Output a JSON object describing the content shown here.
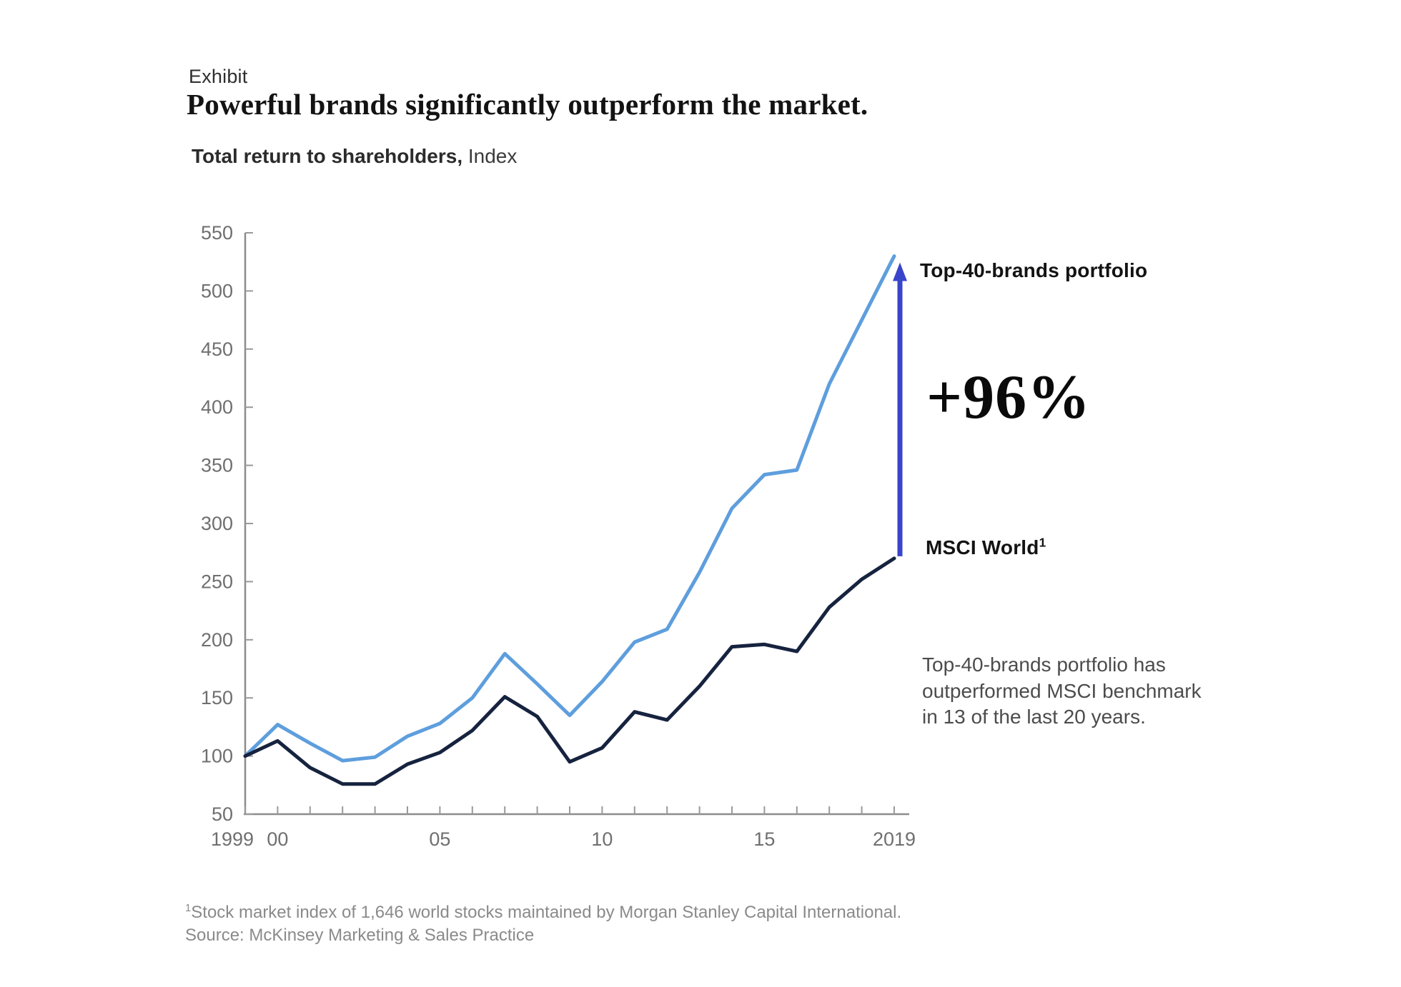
{
  "header": {
    "exhibit_label": "Exhibit",
    "title": "Powerful brands significantly outperform the market.",
    "subtitle_bold": "Total return to shareholders,",
    "subtitle_regular": "Index"
  },
  "chart_data": {
    "type": "line",
    "title": "Total return to shareholders, Index",
    "x": [
      1999,
      2000,
      2001,
      2002,
      2003,
      2004,
      2005,
      2006,
      2007,
      2008,
      2009,
      2010,
      2011,
      2012,
      2013,
      2014,
      2015,
      2016,
      2017,
      2018,
      2019
    ],
    "x_tick_labels": {
      "1999": "1999",
      "2000": "00",
      "2005": "05",
      "2010": "10",
      "2015": "15",
      "2019": "2019"
    },
    "y_ticks": [
      50,
      100,
      150,
      200,
      250,
      300,
      350,
      400,
      450,
      500,
      550
    ],
    "ylim": [
      50,
      550
    ],
    "grid": false,
    "series": [
      {
        "name": "Top-40-brands portfolio",
        "color": "#5E9EDD",
        "values": [
          100,
          127,
          111,
          96,
          99,
          117,
          128,
          150,
          188,
          162,
          135,
          164,
          198,
          209,
          258,
          313,
          342,
          346,
          420,
          475,
          530
        ]
      },
      {
        "name": "MSCI World",
        "color": "#16233F",
        "values": [
          100,
          113,
          90,
          76,
          76,
          93,
          103,
          122,
          151,
          134,
          95,
          107,
          138,
          131,
          160,
          194,
          196,
          190,
          228,
          252,
          270
        ]
      }
    ],
    "annotation_arrow": {
      "from_value": 270,
      "to_value": 530,
      "label": "+96%",
      "color": "#3845CB"
    }
  },
  "annotations": {
    "top_series_label": "Top-40-brands portfolio",
    "delta_label": "+96%",
    "msci_label": "MSCI World",
    "msci_superscript": "1",
    "note": "Top-40-brands portfolio has outperformed MSCI benchmark in 13 of the last 20 years."
  },
  "footer": {
    "footnote_superscript": "1",
    "footnote": "Stock market index of 1,646 world stocks maintained by Morgan Stanley Capital International.",
    "source": "Source: McKinsey Marketing & Sales Practice"
  },
  "colors": {
    "top_series": "#5E9EDD",
    "msci_series": "#16233F",
    "arrow": "#3845CB",
    "axis": "#8C8C8C",
    "tick": "#9A9A9A",
    "tick_label": "#6F6F6F"
  }
}
